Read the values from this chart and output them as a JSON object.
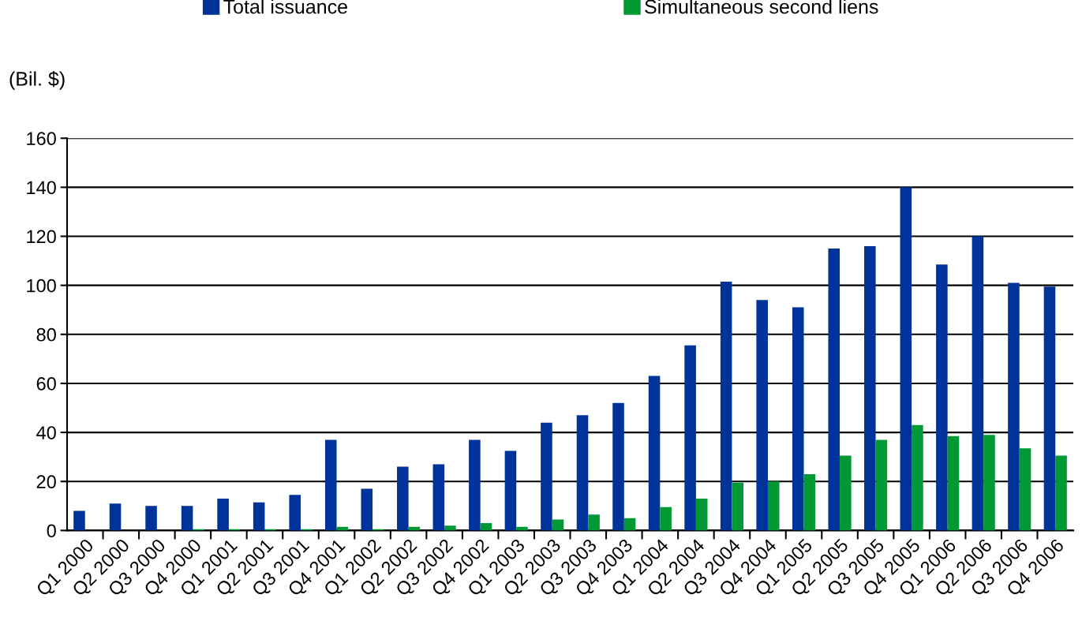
{
  "chart_data": {
    "type": "bar",
    "ylabel": "(Bil. $)",
    "categories": [
      "Q1 2000",
      "Q2 2000",
      "Q3 2000",
      "Q4 2000",
      "Q1 2001",
      "Q2 2001",
      "Q3 2001",
      "Q4 2001",
      "Q1 2002",
      "Q2 2002",
      "Q3 2002",
      "Q4 2002",
      "Q1 2003",
      "Q2 2003",
      "Q3 2003",
      "Q4 2003",
      "Q1 2004",
      "Q2 2004",
      "Q3 2004",
      "Q4 2004",
      "Q1 2005",
      "Q2 2005",
      "Q3 2005",
      "Q4 2005",
      "Q1 2006",
      "Q2 2006",
      "Q3 2006",
      "Q4 2006"
    ],
    "series": [
      {
        "name": "Total issuance",
        "color": "#003399",
        "values": [
          8,
          11,
          10,
          10,
          13,
          11.5,
          14.5,
          37,
          17,
          26,
          27,
          37,
          32.5,
          44,
          47,
          52,
          63,
          75.5,
          101.5,
          94,
          91,
          115,
          116,
          140,
          108.5,
          120,
          101,
          99.5
        ]
      },
      {
        "name": "Simultaneous second liens",
        "color": "#009933",
        "values": [
          0,
          0,
          0,
          0.5,
          0.5,
          0.5,
          0.5,
          1.5,
          0.5,
          1.5,
          2,
          3,
          1.5,
          4.5,
          6.5,
          5,
          9.5,
          13,
          19.5,
          20,
          23,
          30.5,
          37,
          43,
          38.5,
          39,
          33.5,
          30.5
        ]
      }
    ],
    "ylim": [
      0,
      160
    ],
    "yticks": [
      0,
      20,
      40,
      60,
      80,
      100,
      120,
      140,
      160
    ],
    "grid": "y",
    "legend": "top"
  }
}
